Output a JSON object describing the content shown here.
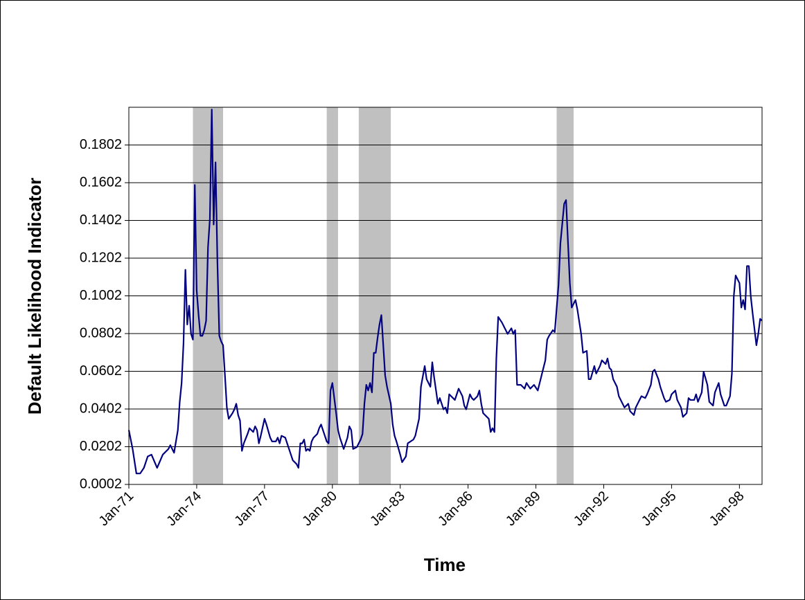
{
  "chart_data": {
    "type": "line",
    "x_label": "Time",
    "y_label": "Default Likelihood Indicator",
    "color": "#000080",
    "shade_color": "#c0c0c0",
    "grid": true,
    "xlim": [
      "Jan-71",
      "Jan-99"
    ],
    "xticks": [
      "Jan-71",
      "Jan-74",
      "Jan-77",
      "Jan-80",
      "Jan-83",
      "Jan-86",
      "Jan-89",
      "Jan-92",
      "Jan-95",
      "Jan-98"
    ],
    "ylim": [
      0.0002,
      0.2002
    ],
    "yticks": [
      0.0002,
      0.0202,
      0.0402,
      0.0602,
      0.0802,
      0.1002,
      0.1202,
      0.1402,
      0.1602,
      0.1802
    ],
    "shaded_periods": [
      {
        "start": "Nov-73",
        "end": "Mar-75"
      },
      {
        "start": "Oct-79",
        "end": "Apr-80"
      },
      {
        "start": "Mar-81",
        "end": "Aug-82"
      },
      {
        "start": "Dec-89",
        "end": "Sep-90"
      }
    ],
    "x": [
      "Jan-71",
      "Mar-71",
      "May-71",
      "Jul-71",
      "Sep-71",
      "Nov-71",
      "Jan-72",
      "Apr-72",
      "Jul-72",
      "Oct-72",
      "Nov-72",
      "Jan-73",
      "Mar-73",
      "Apr-73",
      "May-73",
      "Jun-73",
      "Jul-73",
      "Aug-73",
      "Sep-73",
      "Oct-73",
      "Nov-73",
      "Dec-73",
      "Jan-74",
      "Feb-74",
      "Mar-74",
      "Apr-74",
      "May-74",
      "Jun-74",
      "Jul-74",
      "Aug-74",
      "Sep-74",
      "Oct-74",
      "Nov-74",
      "Dec-74",
      "Jan-75",
      "Feb-75",
      "Mar-75",
      "Apr-75",
      "May-75",
      "Jun-75",
      "Aug-75",
      "Sep-75",
      "Oct-75",
      "Nov-75",
      "Dec-75",
      "Jan-76",
      "Feb-76",
      "Apr-76",
      "May-76",
      "Jun-76",
      "Jul-76",
      "Aug-76",
      "Sep-76",
      "Oct-76",
      "Nov-76",
      "Jan-77",
      "Feb-77",
      "Apr-77",
      "May-77",
      "Jul-77",
      "Aug-77",
      "Sep-77",
      "Oct-77",
      "Dec-77",
      "Jan-78",
      "Mar-78",
      "Apr-78",
      "Jun-78",
      "Jul-78",
      "Aug-78",
      "Sep-78",
      "Oct-78",
      "Nov-78",
      "Dec-78",
      "Jan-79",
      "Feb-79",
      "Mar-79",
      "May-79",
      "Jun-79",
      "Jul-79",
      "Aug-79",
      "Sep-79",
      "Oct-79",
      "Nov-79",
      "Dec-79",
      "Jan-80",
      "Mar-80",
      "Apr-80",
      "May-80",
      "Jul-80",
      "Sep-80",
      "Oct-80",
      "Nov-80",
      "Dec-80",
      "Feb-81",
      "Apr-81",
      "May-81",
      "Jun-81",
      "Jul-81",
      "Aug-81",
      "Sep-81",
      "Oct-81",
      "Nov-81",
      "Dec-81",
      "Jan-82",
      "Feb-82",
      "Mar-82",
      "May-82",
      "Jun-82",
      "Aug-82",
      "Sep-82",
      "Oct-82",
      "Nov-82",
      "Jan-83",
      "Feb-83",
      "Apr-83",
      "May-83",
      "Aug-83",
      "Sep-83",
      "Nov-83",
      "Dec-83",
      "Feb-84",
      "Mar-84",
      "May-84",
      "Jun-84",
      "Jul-84",
      "Sep-84",
      "Oct-84",
      "Dec-84",
      "Jan-85",
      "Feb-85",
      "Mar-85",
      "May-85",
      "Jun-85",
      "Jul-85",
      "Aug-85",
      "Oct-85",
      "Nov-85",
      "Dec-85",
      "Feb-86",
      "Mar-86",
      "Apr-86",
      "Jun-86",
      "Jul-86",
      "Aug-86",
      "Sep-86",
      "Nov-86",
      "Dec-86",
      "Jan-87",
      "Feb-87",
      "Mar-87",
      "Apr-87",
      "May-87",
      "Jul-87",
      "Aug-87",
      "Oct-87",
      "Dec-87",
      "Jan-88",
      "Feb-88",
      "Mar-88",
      "May-88",
      "Jul-88",
      "Aug-88",
      "Oct-88",
      "Dec-88",
      "Feb-89",
      "Apr-89",
      "Jun-89",
      "Jul-89",
      "Aug-89",
      "Oct-89",
      "Nov-89",
      "Jan-90",
      "Feb-90",
      "Apr-90",
      "May-90",
      "Jul-90",
      "Aug-90",
      "Sep-90",
      "Oct-90",
      "Nov-90",
      "Jan-91",
      "Feb-91",
      "Apr-91",
      "May-91",
      "Jun-91",
      "Aug-91",
      "Sep-91",
      "Nov-91",
      "Dec-91",
      "Feb-92",
      "Mar-92",
      "Apr-92",
      "May-92",
      "Jun-92",
      "Aug-92",
      "Sep-92",
      "Nov-92",
      "Dec-92",
      "Feb-93",
      "Mar-93",
      "May-93",
      "Jun-93",
      "Aug-93",
      "Sep-93",
      "Nov-93",
      "Dec-93",
      "Feb-94",
      "Mar-94",
      "Apr-94",
      "Jun-94",
      "Jul-94",
      "Sep-94",
      "Oct-94",
      "Dec-94",
      "Jan-95",
      "Mar-95",
      "Apr-95",
      "Jun-95",
      "Jul-95",
      "Sep-95",
      "Oct-95",
      "Nov-95",
      "Jan-96",
      "Feb-96",
      "Mar-96",
      "May-96",
      "Jun-96",
      "Aug-96",
      "Sep-96",
      "Nov-96",
      "Dec-96",
      "Feb-97",
      "Mar-97",
      "May-97",
      "Jun-97",
      "Aug-97",
      "Sep-97",
      "Oct-97",
      "Nov-97",
      "Jan-98",
      "Feb-98",
      "Mar-98",
      "Apr-98",
      "May-98",
      "Jun-98",
      "Jul-98",
      "Aug-98",
      "Oct-98",
      "Nov-98",
      "Dec-98",
      "Jan-99"
    ],
    "values": [
      0.029,
      0.019,
      0.006,
      0.006,
      0.009,
      0.015,
      0.016,
      0.009,
      0.016,
      0.019,
      0.021,
      0.017,
      0.029,
      0.044,
      0.054,
      0.075,
      0.114,
      0.085,
      0.095,
      0.08,
      0.077,
      0.159,
      0.103,
      0.09,
      0.079,
      0.079,
      0.082,
      0.087,
      0.126,
      0.141,
      0.199,
      0.138,
      0.171,
      0.118,
      0.079,
      0.076,
      0.074,
      0.058,
      0.041,
      0.035,
      0.038,
      0.04,
      0.043,
      0.037,
      0.034,
      0.018,
      0.022,
      0.027,
      0.03,
      0.029,
      0.028,
      0.031,
      0.029,
      0.022,
      0.026,
      0.035,
      0.032,
      0.025,
      0.023,
      0.023,
      0.025,
      0.022,
      0.026,
      0.025,
      0.022,
      0.016,
      0.013,
      0.011,
      0.009,
      0.022,
      0.022,
      0.024,
      0.018,
      0.019,
      0.018,
      0.023,
      0.025,
      0.027,
      0.03,
      0.032,
      0.029,
      0.026,
      0.023,
      0.022,
      0.05,
      0.054,
      0.038,
      0.029,
      0.025,
      0.019,
      0.025,
      0.031,
      0.029,
      0.019,
      0.02,
      0.024,
      0.027,
      0.043,
      0.053,
      0.05,
      0.054,
      0.049,
      0.07,
      0.07,
      0.078,
      0.085,
      0.09,
      0.058,
      0.052,
      0.043,
      0.032,
      0.026,
      0.023,
      0.016,
      0.012,
      0.015,
      0.022,
      0.024,
      0.026,
      0.035,
      0.052,
      0.063,
      0.056,
      0.052,
      0.065,
      0.057,
      0.043,
      0.046,
      0.04,
      0.041,
      0.038,
      0.048,
      0.046,
      0.045,
      0.048,
      0.051,
      0.047,
      0.042,
      0.04,
      0.048,
      0.046,
      0.045,
      0.047,
      0.05,
      0.043,
      0.038,
      0.036,
      0.035,
      0.028,
      0.03,
      0.028,
      0.067,
      0.089,
      0.086,
      0.084,
      0.08,
      0.083,
      0.08,
      0.082,
      0.053,
      0.053,
      0.051,
      0.054,
      0.051,
      0.053,
      0.05,
      0.058,
      0.066,
      0.077,
      0.079,
      0.082,
      0.081,
      0.106,
      0.128,
      0.149,
      0.151,
      0.107,
      0.094,
      0.096,
      0.098,
      0.093,
      0.08,
      0.07,
      0.071,
      0.056,
      0.056,
      0.063,
      0.059,
      0.063,
      0.066,
      0.064,
      0.067,
      0.062,
      0.061,
      0.056,
      0.052,
      0.047,
      0.043,
      0.041,
      0.043,
      0.039,
      0.037,
      0.041,
      0.045,
      0.047,
      0.046,
      0.048,
      0.053,
      0.06,
      0.061,
      0.056,
      0.052,
      0.046,
      0.044,
      0.045,
      0.048,
      0.05,
      0.045,
      0.041,
      0.036,
      0.038,
      0.046,
      0.045,
      0.045,
      0.048,
      0.044,
      0.049,
      0.06,
      0.053,
      0.044,
      0.042,
      0.049,
      0.054,
      0.048,
      0.042,
      0.042,
      0.047,
      0.059,
      0.1,
      0.111,
      0.107,
      0.094,
      0.098,
      0.093,
      0.116,
      0.116,
      0.1,
      0.091,
      0.074,
      0.08,
      0.088,
      0.087
    ]
  }
}
